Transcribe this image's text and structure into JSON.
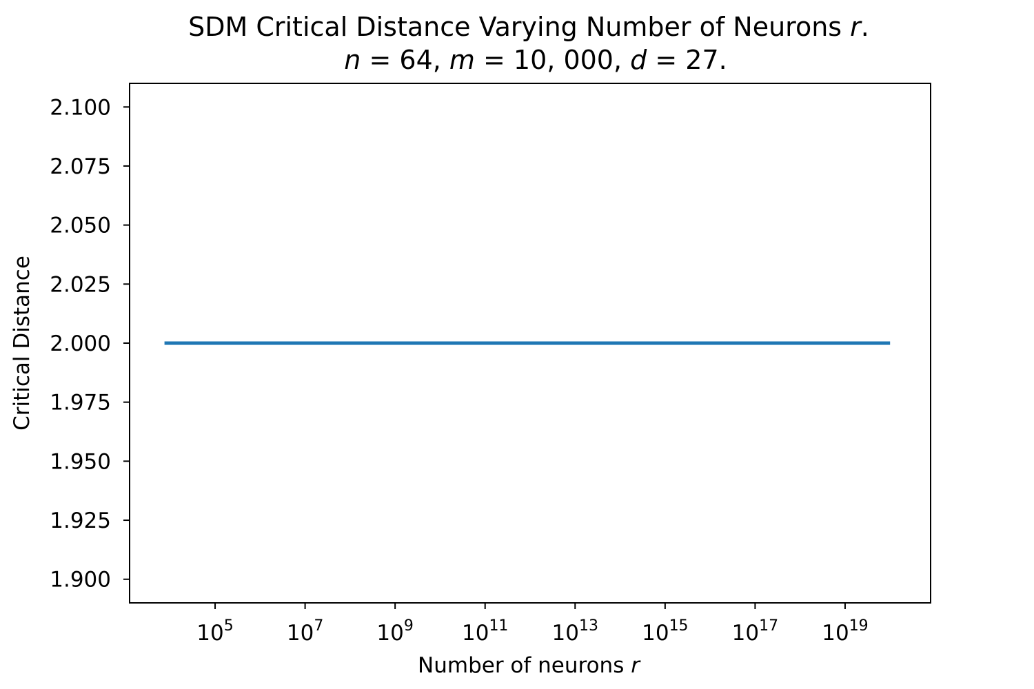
{
  "chart_data": {
    "type": "line",
    "title": {
      "line1_prefix": "SDM Critical Distance Varying Number of Neurons ",
      "line1_var": "r",
      "line1_suffix": ".",
      "line2": [
        {
          "text": "n",
          "italic": true
        },
        {
          "text": " = 64, ",
          "italic": false
        },
        {
          "text": "m",
          "italic": true
        },
        {
          "text": " = 10, 000, ",
          "italic": false
        },
        {
          "text": "d",
          "italic": true
        },
        {
          "text": " = 27.",
          "italic": false
        }
      ]
    },
    "xlabel": {
      "text": "Number of neurons ",
      "var": "r"
    },
    "ylabel": "Critical Distance",
    "xscale": "log",
    "xlim_log10": [
      3.1,
      20.9
    ],
    "ylim": [
      1.89,
      2.11
    ],
    "x_ticks": [
      {
        "base": "10",
        "exp": "5",
        "log10": 5
      },
      {
        "base": "10",
        "exp": "7",
        "log10": 7
      },
      {
        "base": "10",
        "exp": "9",
        "log10": 9
      },
      {
        "base": "10",
        "exp": "11",
        "log10": 11
      },
      {
        "base": "10",
        "exp": "13",
        "log10": 13
      },
      {
        "base": "10",
        "exp": "15",
        "log10": 15
      },
      {
        "base": "10",
        "exp": "17",
        "log10": 17
      },
      {
        "base": "10",
        "exp": "19",
        "log10": 19
      }
    ],
    "y_ticks": [
      "1.900",
      "1.925",
      "1.950",
      "1.975",
      "2.000",
      "2.025",
      "2.050",
      "2.075",
      "2.100"
    ],
    "series": [
      {
        "color": "#1f77b4",
        "x_log10": [
          3.875,
          20.0
        ],
        "values": [
          2.0,
          2.0
        ]
      }
    ],
    "grid": false,
    "legend": "none"
  }
}
